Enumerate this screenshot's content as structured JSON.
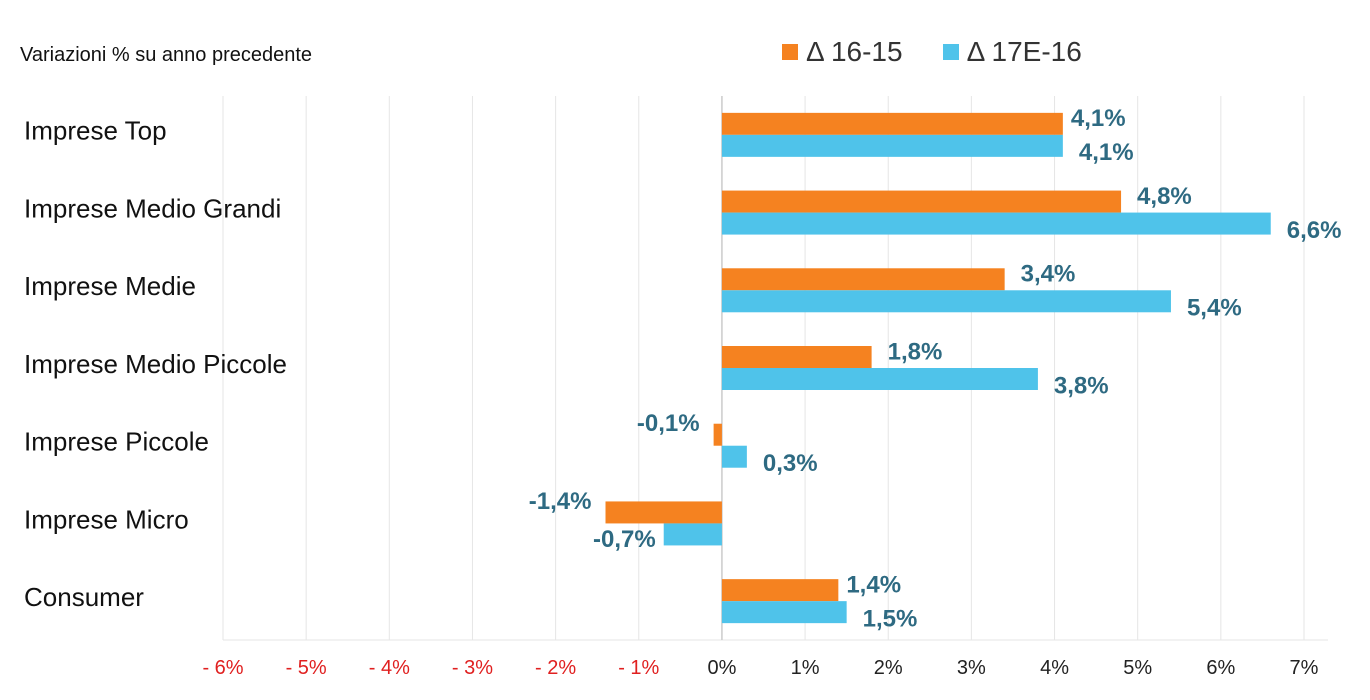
{
  "colors": {
    "series1": "#f58220",
    "series2": "#4fc3ea",
    "data_label": "#2e6a82",
    "negative_tick": "#e02020",
    "positive_tick": "#222222",
    "grid": "#e6e6e6",
    "axis": "#cccccc"
  },
  "chart_data": {
    "type": "bar",
    "orientation": "horizontal",
    "subtitle": "Variazioni % su anno precedente",
    "categories": [
      "Imprese Top",
      "Imprese Medio Grandi",
      "Imprese Medie",
      "Imprese Medio Piccole",
      "Imprese Piccole",
      "Imprese Micro",
      "Consumer"
    ],
    "series": [
      {
        "name": "Δ 16-15",
        "values": [
          4.1,
          4.8,
          3.4,
          1.8,
          -0.1,
          -1.4,
          1.4
        ],
        "labels": [
          "4,1%",
          "4,8%",
          "3,4%",
          "1,8%",
          "-0,1%",
          "-1,4%",
          "1,4%"
        ]
      },
      {
        "name": "Δ 17E-16",
        "values": [
          4.1,
          6.6,
          5.4,
          3.8,
          0.3,
          -0.7,
          1.5
        ],
        "labels": [
          "4,1%",
          "6,6%",
          "5,4%",
          "3,8%",
          "0,3%",
          "-0,7%",
          "1,5%"
        ]
      }
    ],
    "xlim": [
      -6,
      7
    ],
    "xticks": [
      -6,
      -5,
      -4,
      -3,
      -2,
      -1,
      0,
      1,
      2,
      3,
      4,
      5,
      6,
      7
    ],
    "xtick_labels": [
      "- 6%",
      "- 5%",
      "- 4%",
      "- 3%",
      "- 2%",
      "- 1%",
      "0%",
      "1%",
      "2%",
      "3%",
      "4%",
      "5%",
      "6%",
      "7%"
    ],
    "grid": true,
    "legend_position": "top-right"
  }
}
